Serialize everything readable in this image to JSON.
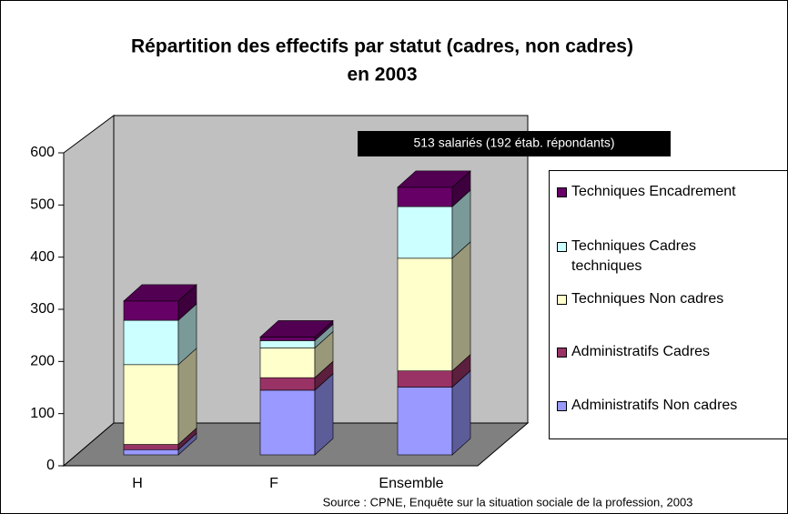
{
  "chart_data": {
    "type": "bar3d_stacked",
    "title": "Répartition des effectifs par statut (cadres, non cadres)",
    "subtitle": "en 2003",
    "annotation": "513 salariés (192 étab. répondants)",
    "source": "Source : CPNE, Enquête sur la situation sociale de la profession, 2003",
    "categories": [
      "H",
      "F",
      "Ensemble"
    ],
    "series": [
      {
        "name": "Administratifs Non cadres",
        "color": "#9999ff",
        "values": [
          10,
          124,
          130
        ]
      },
      {
        "name": "Administratifs Cadres",
        "color": "#993366",
        "values": [
          10,
          24,
          31
        ]
      },
      {
        "name": "Techniques Non cadres",
        "color": "#ffffcc",
        "values": [
          153,
          57,
          216
        ]
      },
      {
        "name": "Techniques Cadres techniques",
        "color": "#ccffff",
        "values": [
          85,
          14,
          99
        ]
      },
      {
        "name": "Techniques Encadrement",
        "color": "#660066",
        "values": [
          37,
          7,
          37
        ]
      }
    ],
    "ylim": [
      0,
      600
    ],
    "yticks": [
      0,
      100,
      200,
      300,
      400,
      500,
      600
    ]
  }
}
